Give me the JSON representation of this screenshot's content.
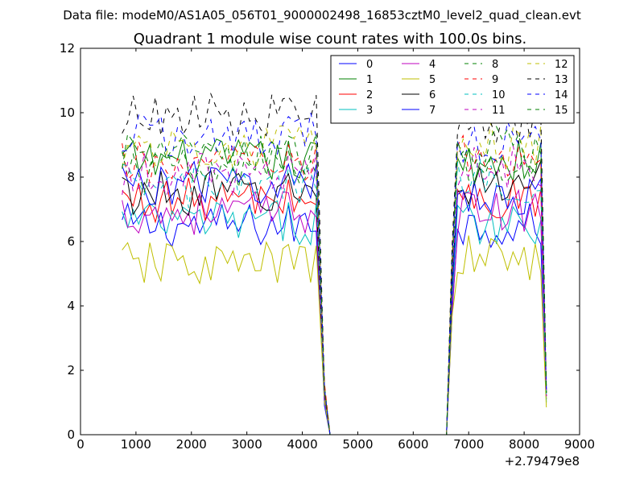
{
  "figure": {
    "suptitle": "Data file: modeM0/AS1A05_056T01_9000002498_16853cztM0_level2_quad_clean.evt"
  },
  "chart_data": {
    "type": "line",
    "title": "Quadrant 1 module wise count rates with 100.0s bins.",
    "xlabel": "",
    "ylabel": "",
    "xlim": [
      0,
      9000
    ],
    "ylim": [
      0,
      12
    ],
    "x_offset_label": "+2.79479e8",
    "xticks": [
      0,
      1000,
      2000,
      3000,
      4000,
      5000,
      6000,
      7000,
      8000,
      9000
    ],
    "yticks": [
      0,
      2,
      4,
      6,
      8,
      10,
      12
    ],
    "legend_position": "top-right",
    "legend_columns": 4,
    "segments": [
      {
        "x_start": 750,
        "x_end": 4300,
        "step": 100
      },
      {
        "x_start": 4400,
        "x_end": 6600,
        "step": 100,
        "note": "gap / drop to zero"
      },
      {
        "x_start": 6700,
        "x_end": 8400,
        "step": 100
      }
    ],
    "series": [
      {
        "name": "0",
        "color": "#0000ff",
        "dashed": false,
        "mean_first": 6.5,
        "mean_second": 6.5,
        "end_value": 1.2
      },
      {
        "name": "1",
        "color": "#008000",
        "dashed": false,
        "mean_first": 8.5,
        "mean_second": 8.5,
        "end_value": 1.3
      },
      {
        "name": "2",
        "color": "#ff0000",
        "dashed": false,
        "mean_first": 7.3,
        "mean_second": 7.3,
        "end_value": 1.1
      },
      {
        "name": "3",
        "color": "#00bfbf",
        "dashed": false,
        "mean_first": 6.6,
        "mean_second": 6.6,
        "end_value": 1.0
      },
      {
        "name": "4",
        "color": "#bf00bf",
        "dashed": false,
        "mean_first": 6.9,
        "mean_second": 6.9,
        "end_value": 1.2
      },
      {
        "name": "5",
        "color": "#bfbf00",
        "dashed": false,
        "mean_first": 5.3,
        "mean_second": 5.5,
        "end_value": 0.85
      },
      {
        "name": "6",
        "color": "#000000",
        "dashed": false,
        "mean_first": 7.5,
        "mean_second": 7.8,
        "end_value": 1.3
      },
      {
        "name": "7",
        "color": "#0000ff",
        "dashed": false,
        "mean_first": 7.8,
        "mean_second": 7.5,
        "end_value": 1.4
      },
      {
        "name": "8",
        "color": "#008000",
        "dashed": true,
        "mean_first": 8.2,
        "mean_second": 8.4,
        "end_value": 1.3
      },
      {
        "name": "9",
        "color": "#ff0000",
        "dashed": true,
        "mean_first": 8.4,
        "mean_second": 8.6,
        "end_value": 1.2
      },
      {
        "name": "10",
        "color": "#00bfbf",
        "dashed": true,
        "mean_first": 7.7,
        "mean_second": 7.9,
        "end_value": 1.1
      },
      {
        "name": "11",
        "color": "#bf00bf",
        "dashed": true,
        "mean_first": 8.1,
        "mean_second": 8.3,
        "end_value": 1.2
      },
      {
        "name": "12",
        "color": "#bfbf00",
        "dashed": true,
        "mean_first": 8.9,
        "mean_second": 9.0,
        "end_value": 1.3
      },
      {
        "name": "13",
        "color": "#000000",
        "dashed": true,
        "mean_first": 9.9,
        "mean_second": 9.6,
        "end_value": 1.5
      },
      {
        "name": "14",
        "color": "#0000ff",
        "dashed": true,
        "mean_first": 9.3,
        "mean_second": 9.1,
        "end_value": 1.4
      },
      {
        "name": "15",
        "color": "#008000",
        "dashed": true,
        "mean_first": 8.7,
        "mean_second": 8.9,
        "end_value": 1.3
      }
    ]
  }
}
